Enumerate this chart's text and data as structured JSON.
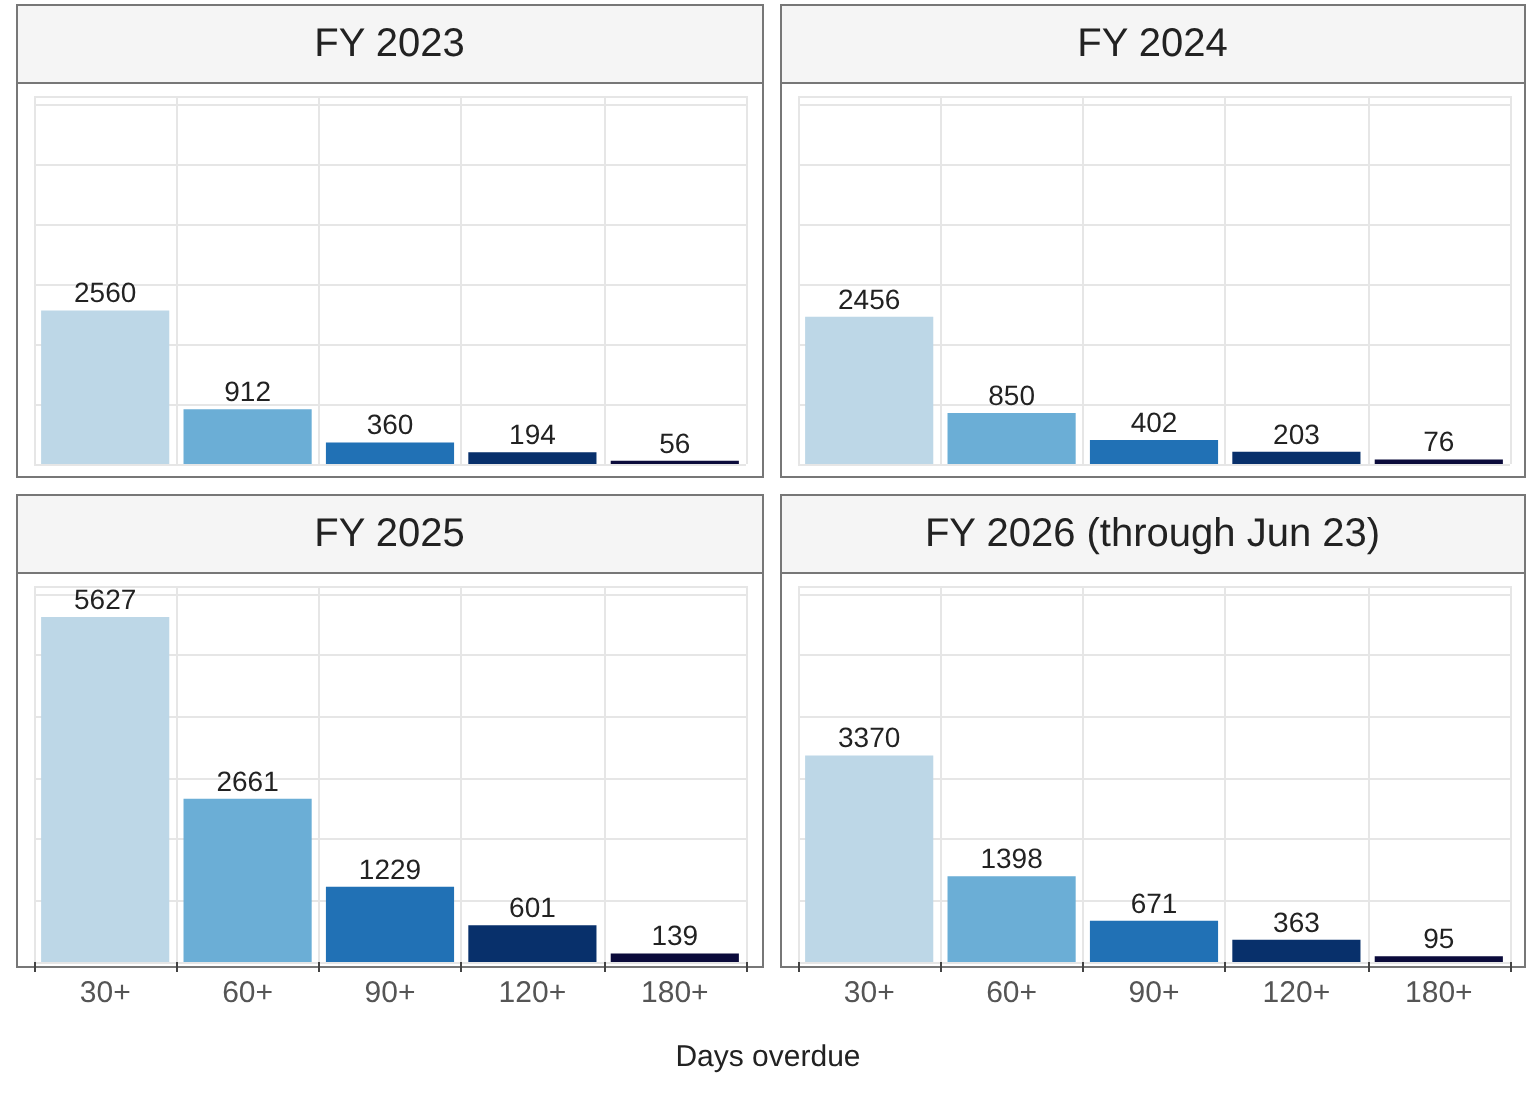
{
  "chart_data": [
    {
      "type": "bar",
      "title": "FY 2023",
      "categories": [
        "30+",
        "60+",
        "90+",
        "120+",
        "180+"
      ],
      "values": [
        2560,
        912,
        360,
        194,
        56
      ],
      "colors": [
        "#bdd7e7",
        "#6baed6",
        "#2171b5",
        "#08306b",
        "#0b0b3b"
      ],
      "data_labels": true,
      "grid": true,
      "tick_labels": false
    },
    {
      "type": "bar",
      "title": "FY 2024",
      "categories": [
        "30+",
        "60+",
        "90+",
        "120+",
        "180+"
      ],
      "values": [
        2456,
        850,
        402,
        203,
        76
      ],
      "colors": [
        "#bdd7e7",
        "#6baed6",
        "#2171b5",
        "#08306b",
        "#0b0b3b"
      ],
      "data_labels": true,
      "grid": true,
      "tick_labels": false
    },
    {
      "type": "bar",
      "title": "FY 2025",
      "categories": [
        "30+",
        "60+",
        "90+",
        "120+",
        "180+"
      ],
      "values": [
        5627,
        2661,
        1229,
        601,
        139
      ],
      "colors": [
        "#bdd7e7",
        "#6baed6",
        "#2171b5",
        "#08306b",
        "#0b0b3b"
      ],
      "data_labels": true,
      "grid": true,
      "tick_labels": "x",
      "xlabel": "Days overdue"
    },
    {
      "type": "bar",
      "title": "FY 2026 (through Jun 23)",
      "categories": [
        "30+",
        "60+",
        "90+",
        "120+",
        "180+"
      ],
      "values": [
        3370,
        1398,
        671,
        363,
        95
      ],
      "colors": [
        "#bdd7e7",
        "#6baed6",
        "#2171b5",
        "#08306b",
        "#0b0b3b"
      ],
      "data_labels": true,
      "grid": true,
      "tick_labels": "x"
    }
  ]
}
